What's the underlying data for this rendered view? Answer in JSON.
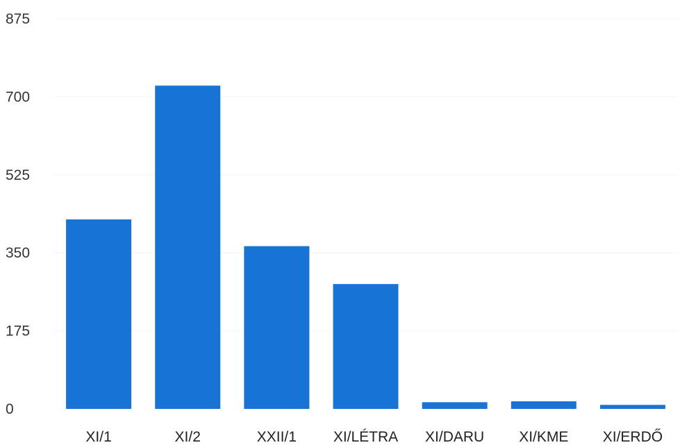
{
  "chart_data": {
    "type": "bar",
    "categories": [
      "XI/1",
      "XI/2",
      "XXII/1",
      "XI/LÉTRA",
      "XI/DARU",
      "XI/KME",
      "XI/ERDŐ"
    ],
    "values": [
      425,
      725,
      365,
      280,
      15,
      17,
      9
    ],
    "ylim": [
      0,
      875
    ],
    "yticks": [
      0,
      175,
      350,
      525,
      700,
      875
    ],
    "grid": true,
    "legend": "none",
    "title": "",
    "xlabel": "",
    "ylabel": "",
    "colors": {
      "bar": "#1874d4"
    }
  }
}
